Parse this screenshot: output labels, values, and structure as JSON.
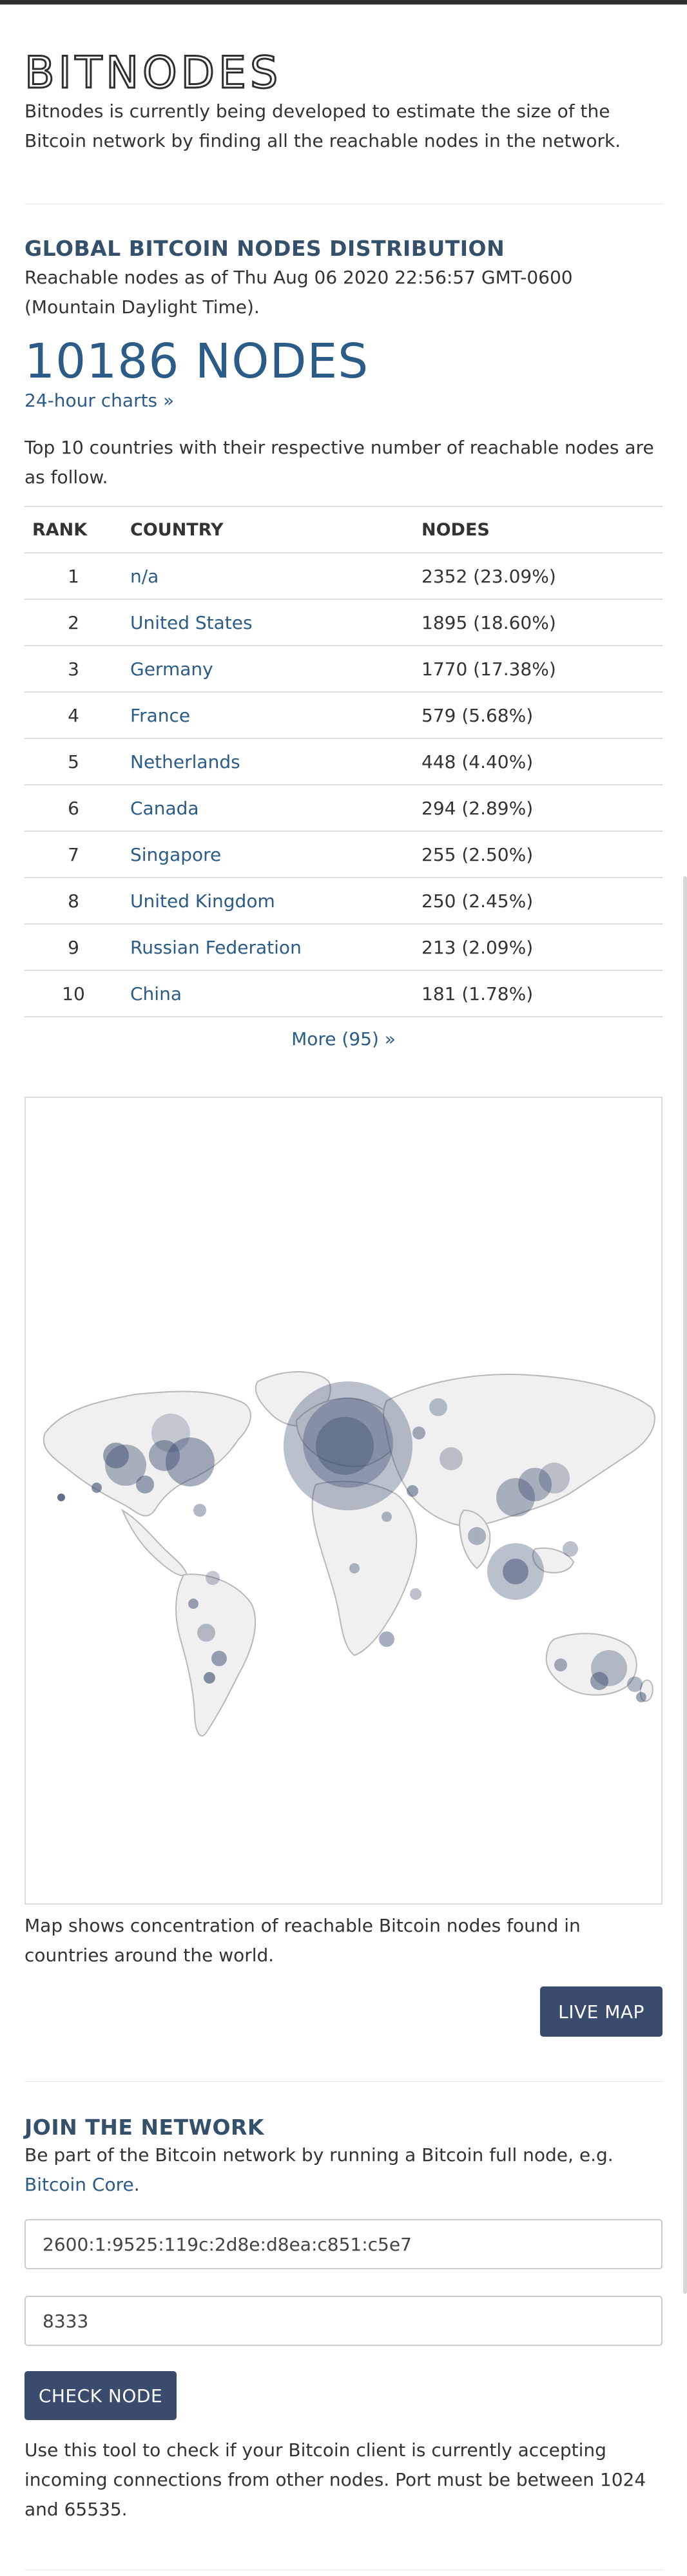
{
  "header": {
    "logo_text": "BITNODES",
    "intro": "Bitnodes is currently being developed to estimate the size of the Bitcoin network by finding all the reachable nodes in the network."
  },
  "distribution": {
    "title": "GLOBAL BITCOIN NODES DISTRIBUTION",
    "reachable_text": "Reachable nodes as of Thu Aug 06 2020 22:56:57 GMT-0600 (Mountain Daylight Time).",
    "count": "10186 NODES",
    "charts_link": "24-hour charts »",
    "top10_text": "Top 10 countries with their respective number of reachable nodes are as follow.",
    "table": {
      "headers": [
        "RANK",
        "COUNTRY",
        "NODES"
      ],
      "rows": [
        {
          "rank": "1",
          "country": "n/a",
          "nodes": "2352 (23.09%)"
        },
        {
          "rank": "2",
          "country": "United States",
          "nodes": "1895 (18.60%)"
        },
        {
          "rank": "3",
          "country": "Germany",
          "nodes": "1770 (17.38%)"
        },
        {
          "rank": "4",
          "country": "France",
          "nodes": "579 (5.68%)"
        },
        {
          "rank": "5",
          "country": "Netherlands",
          "nodes": "448 (4.40%)"
        },
        {
          "rank": "6",
          "country": "Canada",
          "nodes": "294 (2.89%)"
        },
        {
          "rank": "7",
          "country": "Singapore",
          "nodes": "255 (2.50%)"
        },
        {
          "rank": "8",
          "country": "United Kingdom",
          "nodes": "250 (2.45%)"
        },
        {
          "rank": "9",
          "country": "Russian Federation",
          "nodes": "213 (2.09%)"
        },
        {
          "rank": "10",
          "country": "China",
          "nodes": "181 (1.78%)"
        }
      ]
    },
    "more_link": "More (95) »"
  },
  "map": {
    "caption": "Map shows concentration of reachable Bitcoin nodes found in countries around the world.",
    "live_map_button": "LIVE MAP",
    "land_color": "#f0f0f0",
    "bubble_color": "#3a4b6e"
  },
  "join": {
    "title": "JOIN THE NETWORK",
    "desc_prefix": "Be part of the Bitcoin network by running a Bitcoin full node, e.g.",
    "bitcoin_core_link": "Bitcoin Core",
    "desc_suffix": ".",
    "address_value": "2600:1:9525:119c:2d8e:d8ea:c851:c5e7",
    "port_value": "8333",
    "check_button": "CHECK NODE",
    "tool_desc": "Use this tool to check if your Bitcoin client is currently accepting incoming connections from other nodes. Port must be between 1024 and 65535."
  }
}
